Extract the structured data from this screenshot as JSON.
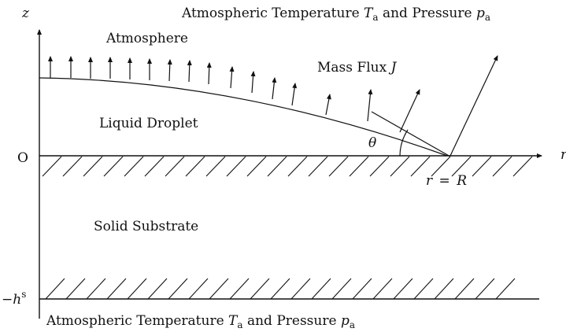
{
  "labels": {
    "z_axis": "z",
    "r_axis": "r",
    "origin": "O",
    "top_ambient_prefix": "Atmospheric Temperature",
    "temperature_symbol": "T",
    "temperature_sub": "a",
    "and_word": "and Pressure",
    "pressure_symbol": "p",
    "pressure_sub": "a",
    "atmosphere": "Atmosphere",
    "mass_flux_prefix": "Mass Flux",
    "mass_flux_symbol": "J",
    "liquid_droplet": "Liquid Droplet",
    "contact_angle": "θ",
    "contact_line_r": "r",
    "contact_line_eq": "=",
    "contact_line_R": "R",
    "solid_substrate": "Solid Substrate",
    "substrate_minus": "−",
    "substrate_h": "h",
    "substrate_sup": "s",
    "bottom_ambient_prefix": "Atmospheric Temperature",
    "bottom_and_word": "and Pressure"
  },
  "colors": {
    "ink": "#111111",
    "background": "#ffffff"
  }
}
